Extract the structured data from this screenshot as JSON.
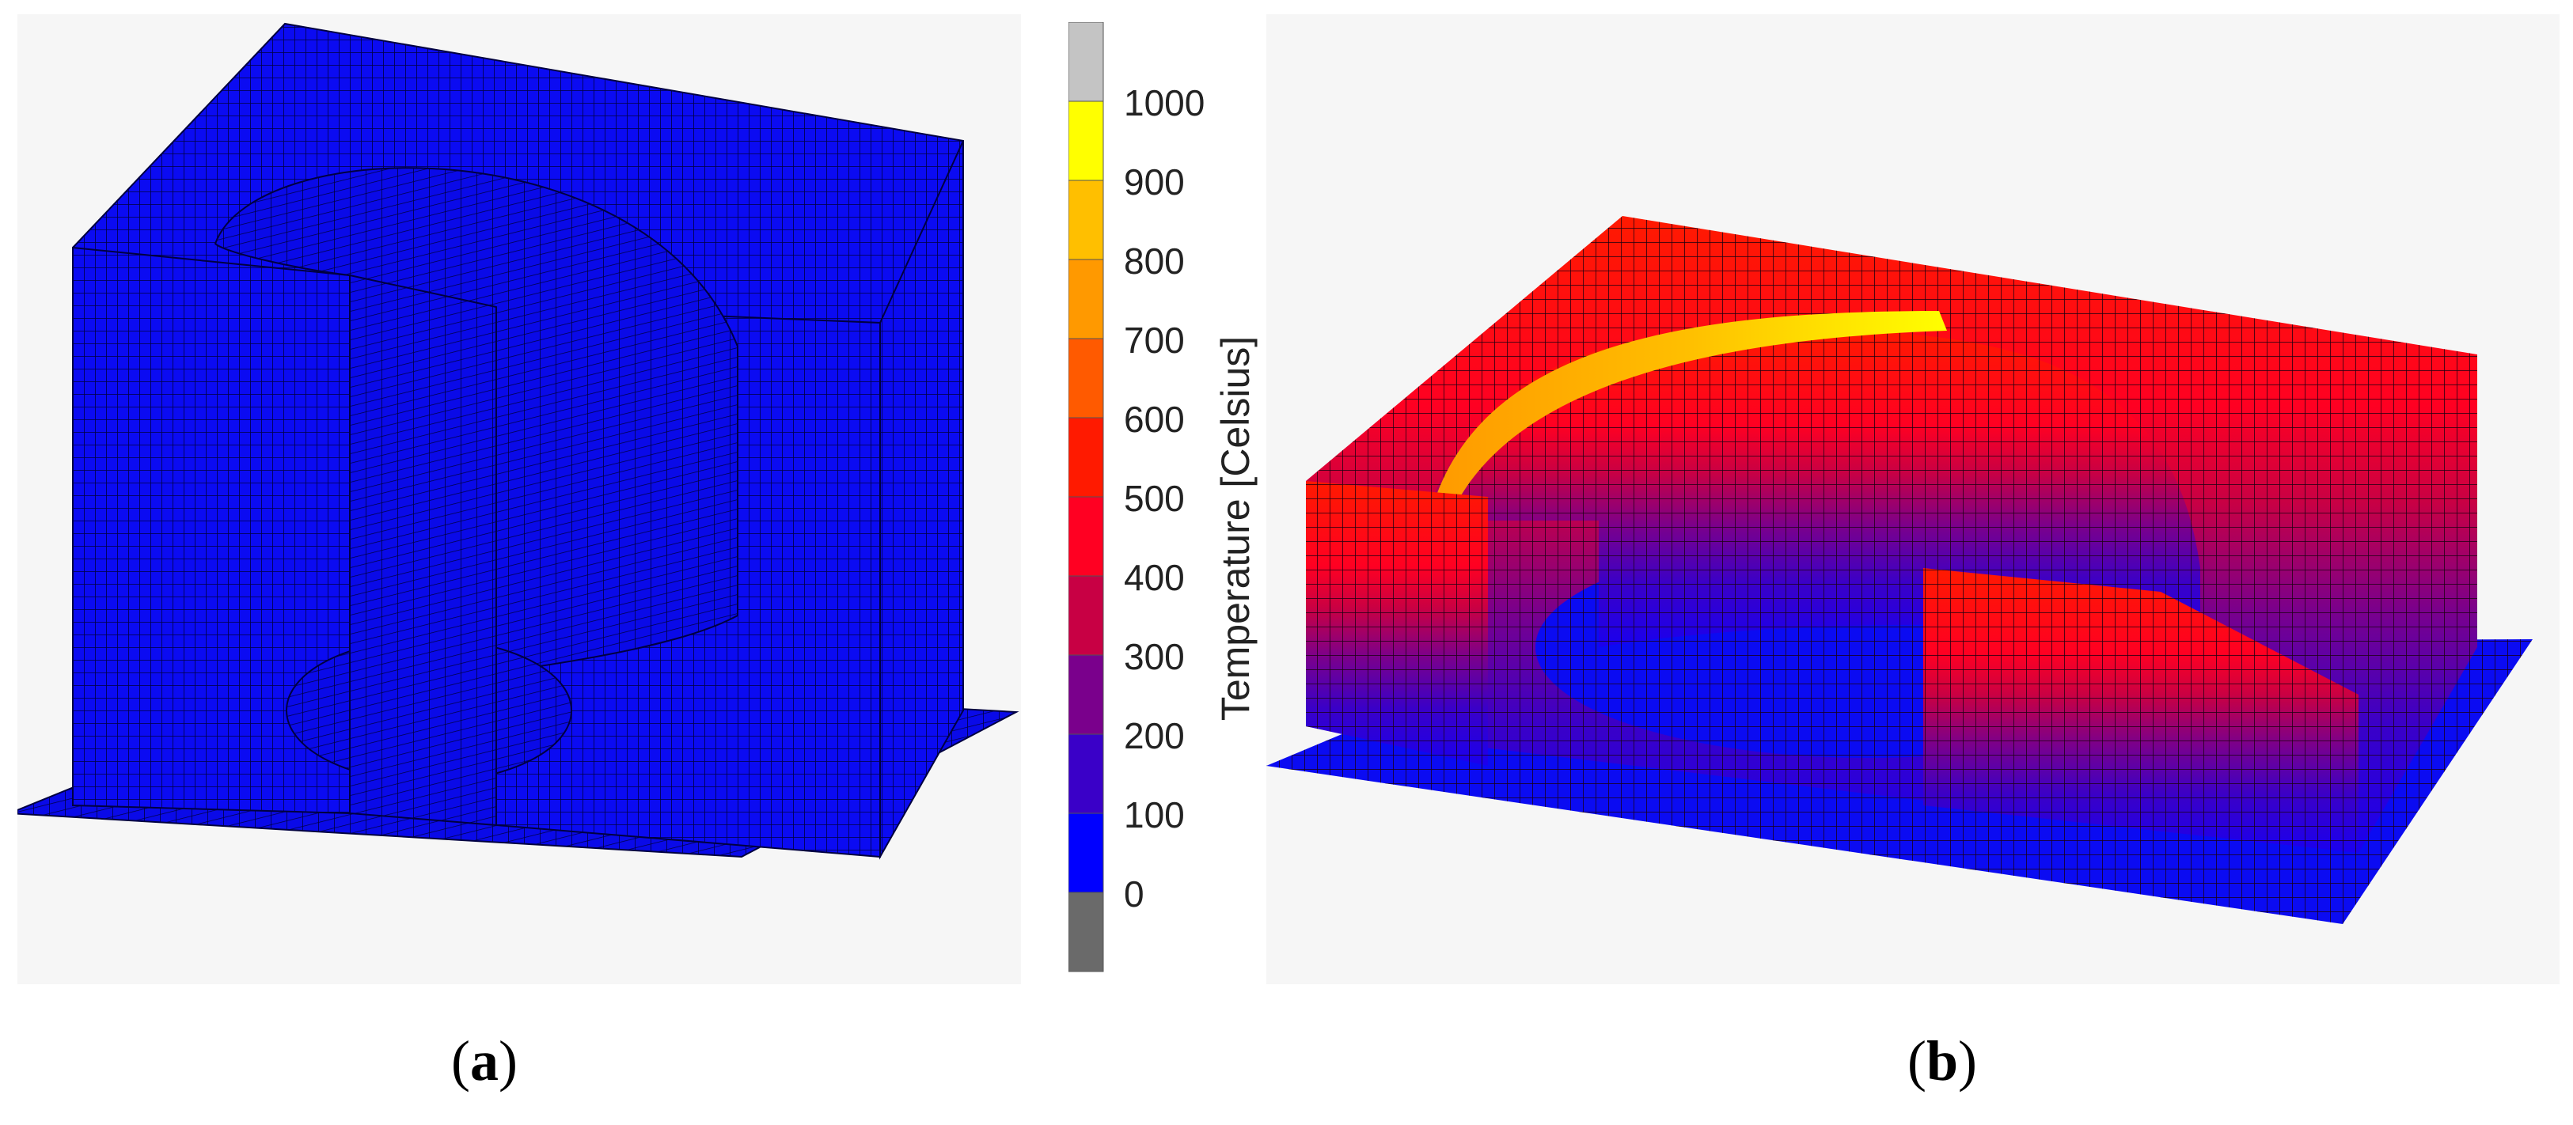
{
  "colors": {
    "cold_mesh": "#0b0bf2",
    "mesh_line": "#000033",
    "panel_bg": "#f6f6f6"
  },
  "colorbar": {
    "title": "Temperature [Celsius]",
    "ticks": [
      "1000",
      "900",
      "800",
      "700",
      "600",
      "500",
      "400",
      "300",
      "200",
      "100",
      "0"
    ],
    "bands": [
      {
        "color": "#c4c4c4"
      },
      {
        "color": "#ffff00"
      },
      {
        "color": "#ffbf00"
      },
      {
        "color": "#ff9900"
      },
      {
        "color": "#ff5a00"
      },
      {
        "color": "#ff1a00"
      },
      {
        "color": "#ff0022"
      },
      {
        "color": "#c80044"
      },
      {
        "color": "#7a008c"
      },
      {
        "color": "#3a00c8"
      },
      {
        "color": "#0000ff"
      },
      {
        "color": "#6a6a6a"
      }
    ]
  },
  "captions": {
    "a_open": "(",
    "a_letter": "a",
    "a_close": ")",
    "b_open": "(",
    "b_letter": "b",
    "b_close": ")"
  }
}
